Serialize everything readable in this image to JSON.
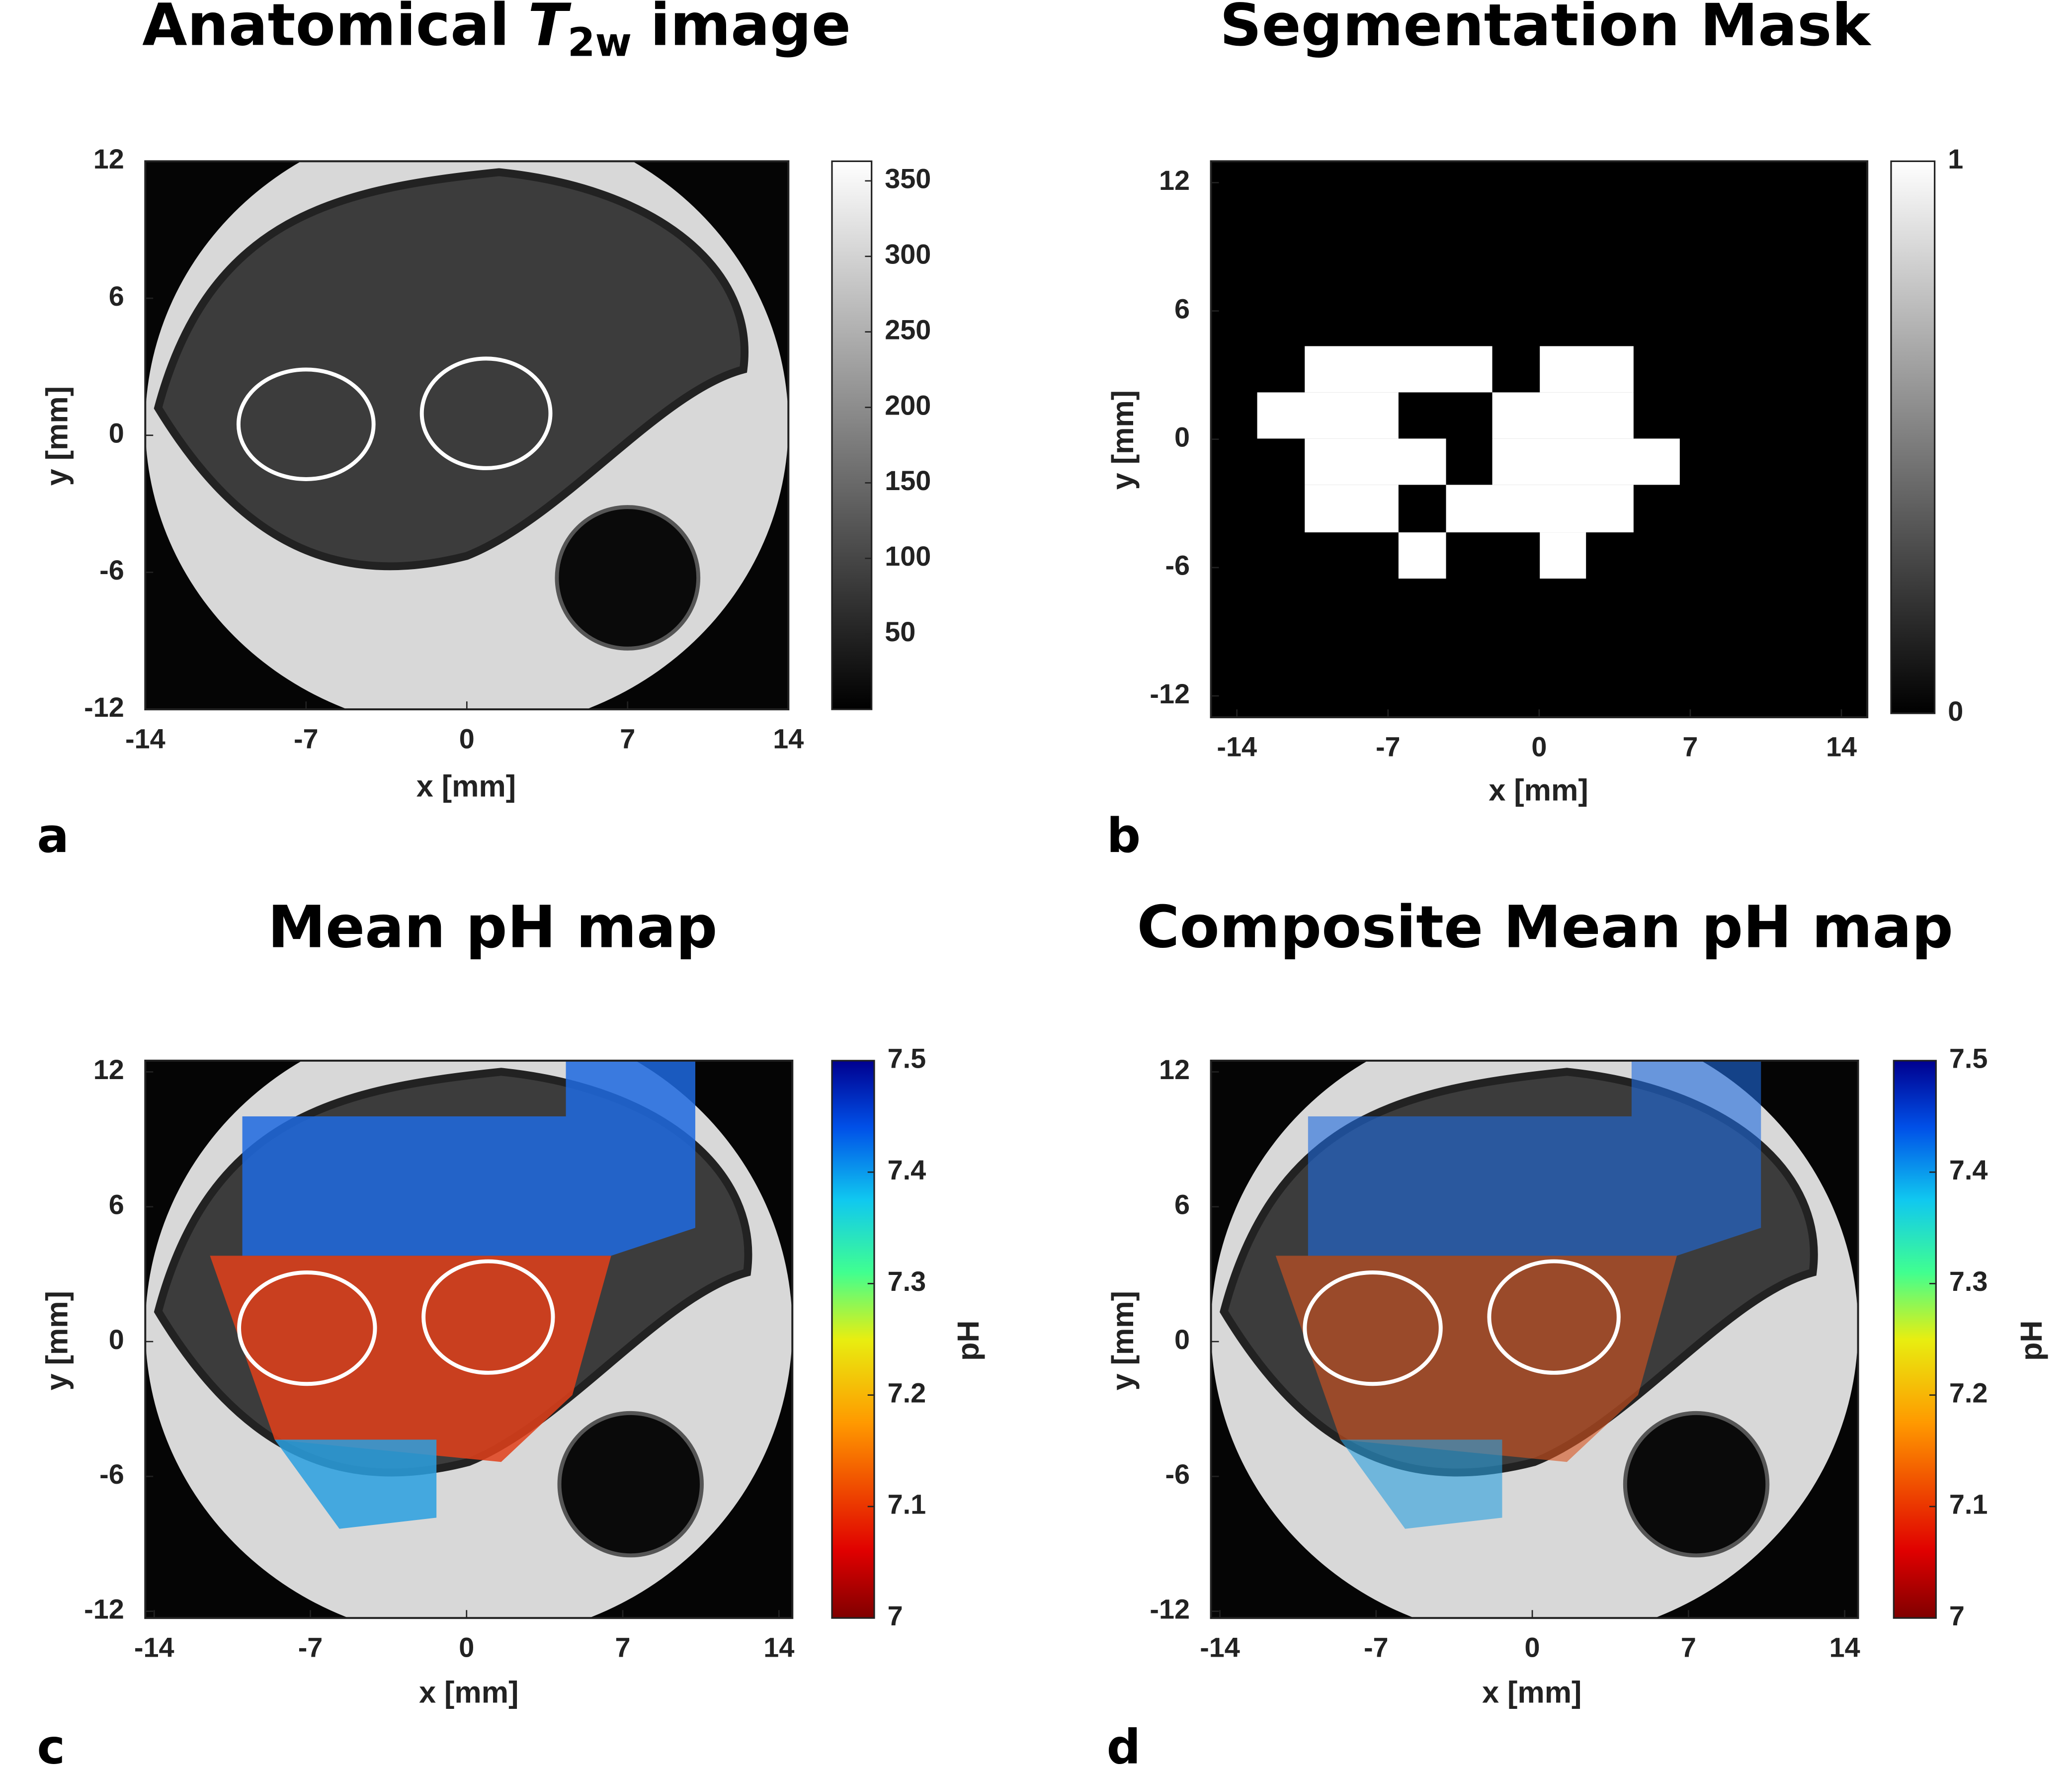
{
  "chart_data": [
    {
      "type": "image",
      "label": "a",
      "title": {
        "prefix": "Anatomical",
        "symbol": "T",
        "subscript": "2w",
        "suffix": "image"
      },
      "x_label": "x [mm]",
      "y_label": "y [mm]",
      "xlim": [
        -14,
        14
      ],
      "ylim": [
        -12,
        12
      ],
      "xticks": [
        -14,
        -7,
        0,
        7,
        14
      ],
      "yticks": [
        -12,
        -6,
        0,
        6,
        12
      ],
      "colormap": "gray",
      "clim": [
        0,
        363
      ],
      "cticks": [
        50,
        100,
        150,
        200,
        250,
        300,
        350
      ]
    },
    {
      "type": "image",
      "label": "b",
      "title": "Segmentation Mask",
      "x_label": "x [mm]",
      "y_label": "y [mm]",
      "xlim": [
        -15.2,
        15.2
      ],
      "ylim": [
        -13,
        13
      ],
      "xticks": [
        -14,
        -7,
        0,
        7,
        14
      ],
      "yticks": [
        -12,
        -6,
        0,
        6,
        12
      ],
      "colormap": "gray",
      "clim": [
        0,
        1
      ],
      "cticks": [
        0,
        1
      ]
    },
    {
      "type": "image",
      "label": "c",
      "title": "Mean pH map",
      "x_label": "x [mm]",
      "y_label": "y [mm]",
      "colorbar_label": "pH",
      "xlim": [
        -14.4,
        14.6
      ],
      "ylim": [
        -12.3,
        12.5
      ],
      "xticks": [
        -14,
        -7,
        0,
        7,
        14
      ],
      "yticks": [
        -12,
        -6,
        0,
        6,
        12
      ],
      "colormap": "jet-reversed",
      "clim": [
        7,
        7.5
      ],
      "cticks": [
        7,
        7.1,
        7.2,
        7.3,
        7.4,
        7.5
      ]
    },
    {
      "type": "image",
      "label": "d",
      "title": "Composite Mean pH map",
      "x_label": "x [mm]",
      "y_label": "y [mm]",
      "colorbar_label": "pH",
      "xlim": [
        -14.4,
        14.6
      ],
      "ylim": [
        -12.3,
        12.5
      ],
      "xticks": [
        -14,
        -7,
        0,
        7,
        14
      ],
      "yticks": [
        -12,
        -6,
        0,
        6,
        12
      ],
      "colormap": "jet-reversed",
      "clim": [
        7,
        7.5
      ],
      "cticks": [
        7,
        7.1,
        7.2,
        7.3,
        7.4,
        7.5
      ]
    }
  ]
}
